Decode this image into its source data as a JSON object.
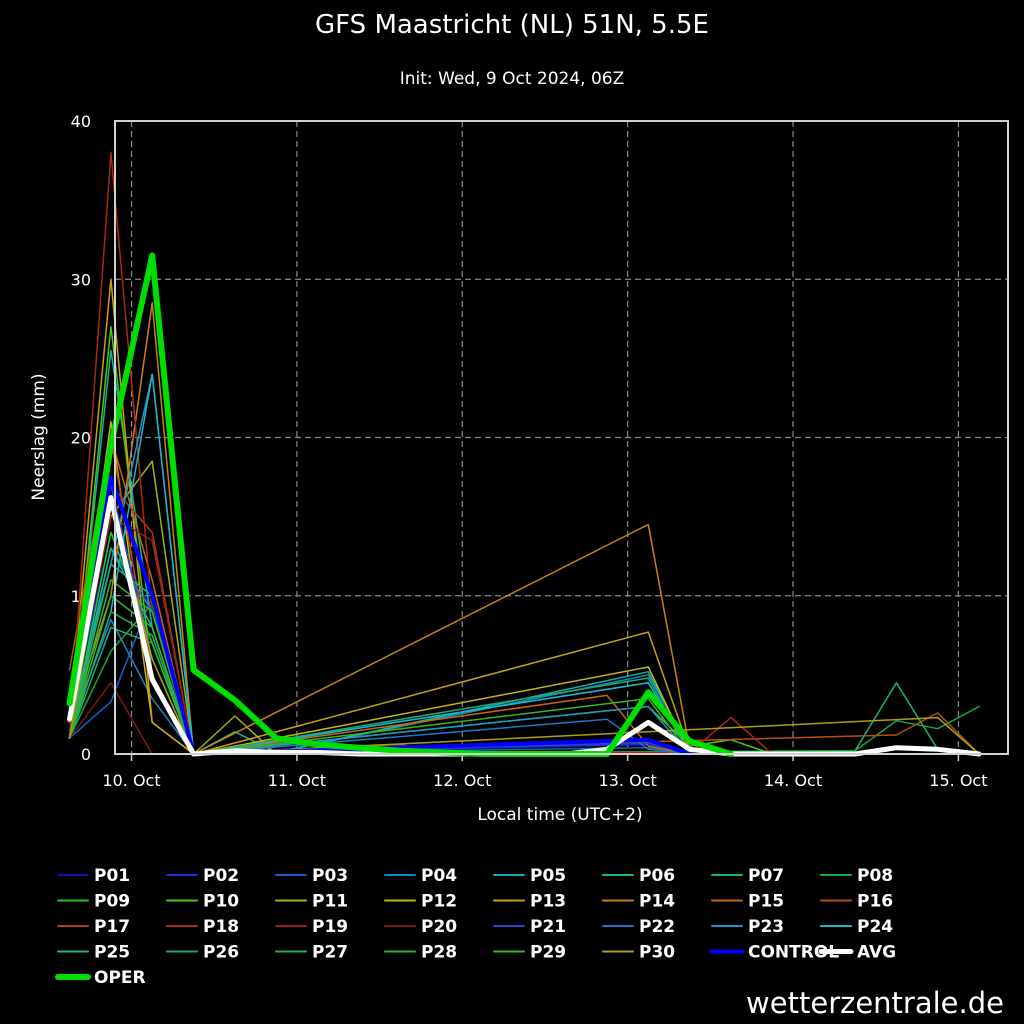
{
  "chart_data": {
    "type": "line",
    "title": "GFS Maastricht (NL) 51N, 5.5E",
    "subtitle": "Init: Wed, 9 Oct 2024, 06Z",
    "xlabel": "Local time (UTC+2)",
    "ylabel": "Neerslag (mm)",
    "ylim": [
      0,
      40
    ],
    "xlim": [
      -0.1,
      5.3
    ],
    "y_ticks": [
      "0",
      "10",
      "20",
      "30",
      "40"
    ],
    "x_ticks": [
      {
        "value": 0,
        "label": "10. Oct"
      },
      {
        "value": 1,
        "label": "11. Oct"
      },
      {
        "value": 2,
        "label": "12. Oct"
      },
      {
        "value": 3,
        "label": "13. Oct"
      },
      {
        "value": 4,
        "label": "14. Oct"
      },
      {
        "value": 5,
        "label": "15. Oct"
      }
    ],
    "grid": true,
    "legend_position": "bottom",
    "series": [
      {
        "name": "P01",
        "color": "#0a14b4",
        "x": [
          -0.375,
          -0.125,
          0.125,
          0.375,
          3.125,
          3.375
        ],
        "y": [
          1.5,
          13,
          8,
          0,
          0.8,
          0
        ]
      },
      {
        "name": "P02",
        "color": "#1430d8",
        "x": [
          -0.375,
          -0.125,
          0.125,
          0.375,
          3.125,
          3.375
        ],
        "y": [
          2,
          14,
          9,
          0,
          0.6,
          0
        ]
      },
      {
        "name": "P03",
        "color": "#1460c8",
        "x": [
          -0.375,
          -0.125,
          0.125,
          0.375,
          3.125,
          3.375
        ],
        "y": [
          1,
          3.3,
          10,
          0,
          0.4,
          0
        ]
      },
      {
        "name": "P04",
        "color": "#1488c8",
        "x": [
          -0.375,
          -0.125,
          0.125,
          0.375,
          0.625,
          0.875,
          3.125,
          3.375
        ],
        "y": [
          1.5,
          8.5,
          3.5,
          0,
          0.5,
          0.1,
          5,
          0.3
        ]
      },
      {
        "name": "P05",
        "color": "#14a8b4",
        "x": [
          -0.375,
          -0.125,
          0.125,
          0.375,
          3.125,
          3.375
        ],
        "y": [
          2,
          12,
          10,
          0,
          4.5,
          0.2
        ]
      },
      {
        "name": "P06",
        "color": "#14b496",
        "x": [
          -0.375,
          -0.125,
          0.125,
          0.375,
          0.625,
          0.875,
          3.125,
          3.375
        ],
        "y": [
          1,
          25.5,
          8,
          0,
          1.4,
          0.1,
          5.2,
          0.2
        ]
      },
      {
        "name": "P07",
        "color": "#14b46e",
        "x": [
          -0.375,
          -0.125,
          0.125,
          0.375,
          4.375,
          4.625,
          4.875,
          5.125
        ],
        "y": [
          1,
          8,
          7,
          0,
          0.2,
          4.5,
          0.3,
          0
        ]
      },
      {
        "name": "P08",
        "color": "#14aa3c",
        "x": [
          -0.375,
          -0.125,
          0.125,
          0.375,
          4.375,
          4.625,
          4.875,
          5.125
        ],
        "y": [
          1,
          6.5,
          9.5,
          0,
          0.2,
          2.1,
          1.6,
          3
        ]
      },
      {
        "name": "P09",
        "color": "#1ec81e",
        "x": [
          -0.375,
          -0.125,
          0.125,
          0.375
        ],
        "y": [
          1,
          14,
          7,
          0
        ]
      },
      {
        "name": "P10",
        "color": "#46c814",
        "x": [
          -0.375,
          -0.125,
          0.125,
          0.375,
          3.125,
          3.375,
          3.625,
          3.875
        ],
        "y": [
          1,
          27,
          5,
          0,
          3,
          0.5,
          0.9,
          0
        ]
      },
      {
        "name": "P11",
        "color": "#a0b414",
        "x": [
          -0.375,
          -0.125,
          0.125,
          0.375,
          0.625,
          0.875
        ],
        "y": [
          2,
          15,
          18.5,
          0,
          2.4,
          0
        ]
      },
      {
        "name": "P12",
        "color": "#c8b414",
        "x": [
          -0.375,
          -0.125,
          0.125,
          0.375,
          3.125,
          3.375
        ],
        "y": [
          2,
          21,
          2,
          0,
          5.5,
          0
        ]
      },
      {
        "name": "P13",
        "color": "#c8a014",
        "x": [
          -0.375,
          -0.125,
          0.125,
          0.375,
          3.125,
          3.375
        ],
        "y": [
          2,
          30,
          2,
          0,
          7.7,
          0.2
        ]
      },
      {
        "name": "P14",
        "color": "#c88214",
        "x": [
          -0.375,
          -0.125,
          0.125,
          0.375,
          3.125,
          3.375
        ],
        "y": [
          2,
          10,
          28.5,
          0,
          14.5,
          0.3
        ]
      },
      {
        "name": "P15",
        "color": "#c86414",
        "x": [
          -0.375,
          -0.125,
          0.125,
          0.375,
          2.875,
          3.125,
          3.375
        ],
        "y": [
          1,
          20,
          11,
          0,
          3.7,
          0.5,
          0
        ]
      },
      {
        "name": "P16",
        "color": "#b45014",
        "x": [
          -0.375,
          -0.125,
          0.125,
          0.375,
          4.625,
          4.875,
          5.125
        ],
        "y": [
          5.3,
          20,
          5,
          0,
          1.2,
          2.6,
          0
        ]
      },
      {
        "name": "P17",
        "color": "#b43c14",
        "x": [
          -0.375,
          -0.125,
          0.125,
          0.375,
          1.625,
          1.875
        ],
        "y": [
          1,
          17,
          14,
          0,
          0.6,
          0
        ]
      },
      {
        "name": "P18",
        "color": "#aa2814",
        "x": [
          -0.375,
          -0.125,
          0.125,
          0.375,
          3.375,
          3.625,
          3.875
        ],
        "y": [
          1,
          38,
          9,
          0,
          0.1,
          2.3,
          0
        ]
      },
      {
        "name": "P19",
        "color": "#961e1e",
        "x": [
          -0.375,
          -0.125,
          0.125,
          0.375
        ],
        "y": [
          2,
          15,
          13.5,
          0
        ]
      },
      {
        "name": "P20",
        "color": "#821414",
        "x": [
          -0.375,
          -0.125,
          0.125,
          0.375
        ],
        "y": [
          1,
          4.5,
          0,
          0
        ]
      },
      {
        "name": "P21",
        "color": "#2846c8",
        "x": [
          -0.375,
          -0.125,
          0.125,
          0.375,
          3.125,
          3.375
        ],
        "y": [
          1,
          17,
          6,
          0,
          0.7,
          0
        ]
      },
      {
        "name": "P22",
        "color": "#1e78c8",
        "x": [
          -0.375,
          -0.125,
          0.125,
          0.375,
          2.875,
          3.125,
          3.375
        ],
        "y": [
          1,
          13,
          9,
          0,
          2.2,
          0.3,
          0
        ]
      },
      {
        "name": "P23",
        "color": "#1e96c8",
        "x": [
          -0.375,
          -0.125,
          0.125,
          0.375,
          3.125,
          3.375
        ],
        "y": [
          1,
          12,
          24,
          0,
          3,
          0
        ]
      },
      {
        "name": "P24",
        "color": "#1eb4c8",
        "x": [
          -0.375,
          -0.125,
          0.125,
          0.375,
          3.125,
          3.375
        ],
        "y": [
          1,
          9,
          24,
          0,
          4.5,
          0
        ]
      },
      {
        "name": "P25",
        "color": "#1eb48c",
        "x": [
          -0.375,
          -0.125,
          0.125,
          0.375
        ],
        "y": [
          1,
          13,
          8,
          0
        ]
      },
      {
        "name": "P26",
        "color": "#1ea878",
        "x": [
          -0.375,
          -0.125,
          0.125,
          0.375,
          3.125,
          3.375
        ],
        "y": [
          1,
          12,
          10,
          0,
          4.8,
          0
        ]
      },
      {
        "name": "P27",
        "color": "#28aa5a",
        "x": [
          -0.375,
          -0.125,
          0.125,
          0.375
        ],
        "y": [
          1,
          9,
          7.5,
          0
        ]
      },
      {
        "name": "P28",
        "color": "#32b432",
        "x": [
          -0.375,
          -0.125,
          0.125,
          0.375
        ],
        "y": [
          1,
          10,
          8,
          0
        ]
      },
      {
        "name": "P29",
        "color": "#3cb41e",
        "x": [
          -0.375,
          -0.125,
          0.125,
          0.375,
          3.125,
          3.375
        ],
        "y": [
          1,
          11,
          9,
          0,
          3.5,
          0
        ]
      },
      {
        "name": "P30",
        "color": "#aaa014",
        "x": [
          -0.375,
          -0.125,
          0.125,
          0.375,
          4.875,
          5.125
        ],
        "y": [
          1,
          16,
          6,
          0,
          2.3,
          0
        ]
      },
      {
        "name": "CONTROL",
        "color": "#0000ff",
        "x": [
          -0.375,
          -0.125,
          0.125,
          0.375,
          3.125,
          3.375
        ],
        "y": [
          2.5,
          17.5,
          10,
          0,
          0.9,
          0
        ]
      },
      {
        "name": "AVG",
        "color": "#ffffff",
        "x": [
          -0.375,
          -0.125,
          0.125,
          0.375,
          0.625,
          0.875,
          1.125,
          1.375,
          2.625,
          2.875,
          3.125,
          3.375,
          3.625,
          4.375,
          4.625,
          4.875,
          5.125
        ],
        "y": [
          2.2,
          16.2,
          4.7,
          0,
          0.2,
          0.1,
          0.1,
          0,
          0,
          0.3,
          2,
          0.3,
          0,
          0,
          0.4,
          0.3,
          0
        ]
      },
      {
        "name": "OPER",
        "color": "#00dd00",
        "x": [
          -0.375,
          -0.125,
          0.125,
          0.375,
          0.625,
          0.875,
          1.125,
          1.375,
          1.625,
          1.875,
          2.125,
          2.375,
          2.625,
          2.875,
          3.125,
          3.375,
          3.625
        ],
        "y": [
          3.2,
          19.5,
          31.5,
          5.3,
          3.4,
          1,
          0.6,
          0.4,
          0.2,
          0.1,
          0,
          0,
          0,
          0,
          3.9,
          0.8,
          0
        ]
      }
    ]
  },
  "watermark": "wetterzentrale.de"
}
